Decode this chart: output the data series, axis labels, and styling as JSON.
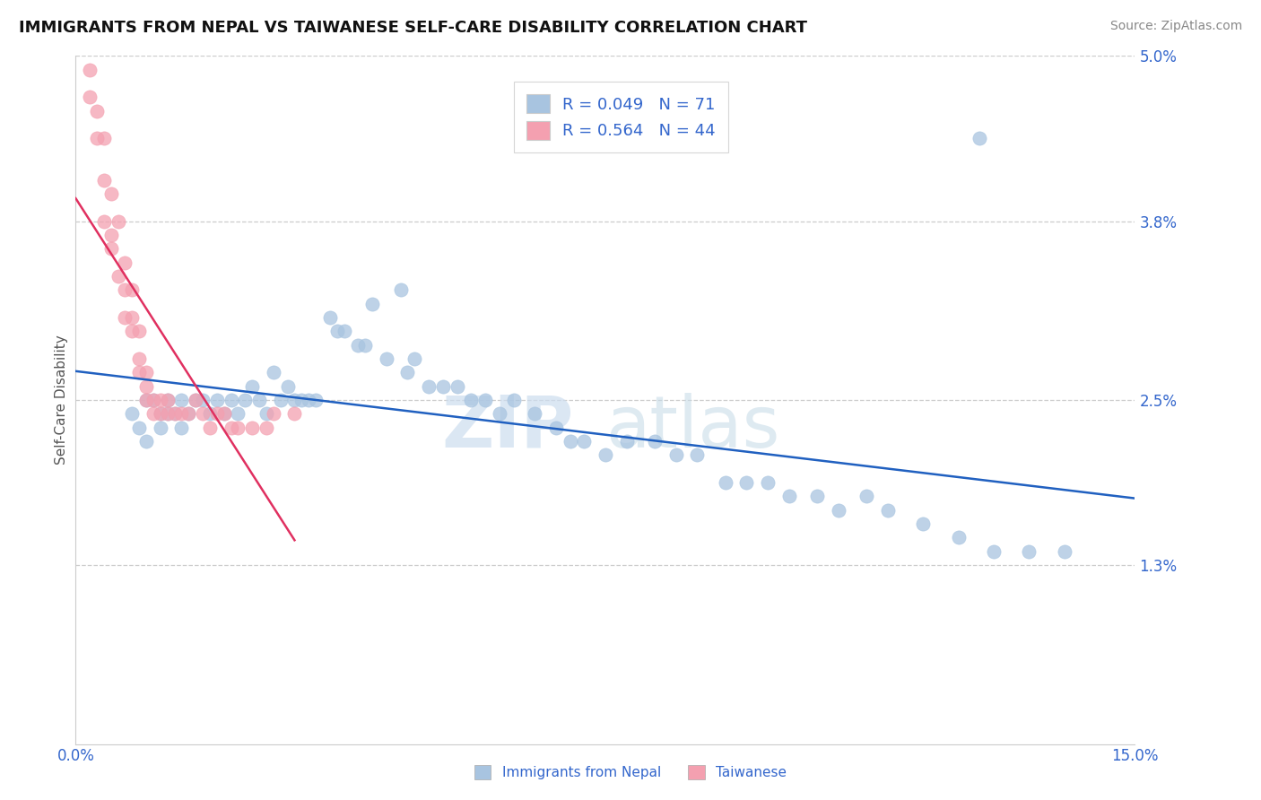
{
  "title": "IMMIGRANTS FROM NEPAL VS TAIWANESE SELF-CARE DISABILITY CORRELATION CHART",
  "source": "Source: ZipAtlas.com",
  "ylabel": "Self-Care Disability",
  "xlim": [
    0.0,
    0.15
  ],
  "ylim": [
    0.0,
    0.05
  ],
  "xticks": [
    0.0,
    0.15
  ],
  "xticklabels": [
    "0.0%",
    "15.0%"
  ],
  "ytick_values": [
    0.013,
    0.025,
    0.038,
    0.05
  ],
  "ytick_labels": [
    "1.3%",
    "2.5%",
    "3.8%",
    "5.0%"
  ],
  "nepal_R": 0.049,
  "nepal_N": 71,
  "taiwan_R": 0.564,
  "taiwan_N": 44,
  "nepal_color": "#a8c4e0",
  "taiwan_color": "#f4a0b0",
  "nepal_line_color": "#2060c0",
  "taiwan_line_color": "#e03060",
  "legend_nepal_label": "Immigrants from Nepal",
  "legend_taiwan_label": "Taiwanese",
  "watermark_zip": "ZIP",
  "watermark_atlas": "atlas",
  "nepal_x": [
    0.008,
    0.009,
    0.01,
    0.01,
    0.011,
    0.012,
    0.012,
    0.013,
    0.013,
    0.014,
    0.015,
    0.015,
    0.016,
    0.017,
    0.018,
    0.019,
    0.02,
    0.021,
    0.022,
    0.023,
    0.024,
    0.025,
    0.026,
    0.027,
    0.028,
    0.029,
    0.03,
    0.031,
    0.032,
    0.033,
    0.034,
    0.036,
    0.037,
    0.038,
    0.04,
    0.041,
    0.042,
    0.044,
    0.046,
    0.047,
    0.048,
    0.05,
    0.052,
    0.054,
    0.056,
    0.058,
    0.06,
    0.062,
    0.065,
    0.068,
    0.07,
    0.072,
    0.075,
    0.078,
    0.082,
    0.085,
    0.088,
    0.092,
    0.095,
    0.098,
    0.101,
    0.105,
    0.108,
    0.112,
    0.115,
    0.12,
    0.125,
    0.13,
    0.135,
    0.14,
    0.128
  ],
  "nepal_y": [
    0.024,
    0.023,
    0.025,
    0.022,
    0.025,
    0.024,
    0.023,
    0.024,
    0.025,
    0.024,
    0.025,
    0.023,
    0.024,
    0.025,
    0.025,
    0.024,
    0.025,
    0.024,
    0.025,
    0.024,
    0.025,
    0.026,
    0.025,
    0.024,
    0.027,
    0.025,
    0.026,
    0.025,
    0.025,
    0.025,
    0.025,
    0.031,
    0.03,
    0.03,
    0.029,
    0.029,
    0.032,
    0.028,
    0.033,
    0.027,
    0.028,
    0.026,
    0.026,
    0.026,
    0.025,
    0.025,
    0.024,
    0.025,
    0.024,
    0.023,
    0.022,
    0.022,
    0.021,
    0.022,
    0.022,
    0.021,
    0.021,
    0.019,
    0.019,
    0.019,
    0.018,
    0.018,
    0.017,
    0.018,
    0.017,
    0.016,
    0.015,
    0.014,
    0.014,
    0.014,
    0.044
  ],
  "taiwan_x": [
    0.002,
    0.002,
    0.003,
    0.003,
    0.004,
    0.004,
    0.004,
    0.005,
    0.005,
    0.005,
    0.006,
    0.006,
    0.007,
    0.007,
    0.007,
    0.008,
    0.008,
    0.008,
    0.009,
    0.009,
    0.009,
    0.01,
    0.01,
    0.01,
    0.011,
    0.011,
    0.012,
    0.012,
    0.013,
    0.013,
    0.014,
    0.015,
    0.016,
    0.017,
    0.018,
    0.019,
    0.02,
    0.021,
    0.022,
    0.023,
    0.025,
    0.027,
    0.028,
    0.031
  ],
  "taiwan_y": [
    0.049,
    0.047,
    0.046,
    0.044,
    0.041,
    0.038,
    0.044,
    0.037,
    0.036,
    0.04,
    0.034,
    0.038,
    0.033,
    0.031,
    0.035,
    0.03,
    0.031,
    0.033,
    0.028,
    0.03,
    0.027,
    0.027,
    0.026,
    0.025,
    0.025,
    0.024,
    0.025,
    0.024,
    0.025,
    0.024,
    0.024,
    0.024,
    0.024,
    0.025,
    0.024,
    0.023,
    0.024,
    0.024,
    0.023,
    0.023,
    0.023,
    0.023,
    0.024,
    0.024
  ]
}
